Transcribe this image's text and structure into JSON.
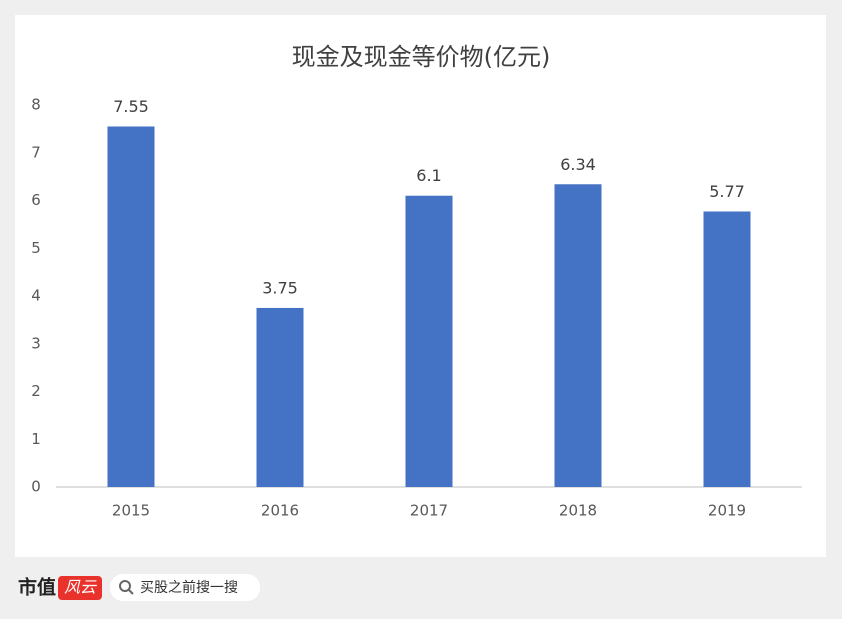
{
  "chart_data": {
    "type": "bar",
    "title": "现金及现金等价物(亿元)",
    "categories": [
      "2015",
      "2016",
      "2017",
      "2018",
      "2019"
    ],
    "values": [
      7.55,
      3.75,
      6.1,
      6.34,
      5.77
    ],
    "color": "#4472c4",
    "ylim": [
      0,
      8
    ],
    "yticks": [
      0,
      1,
      2,
      3,
      4,
      5,
      6,
      7,
      8
    ],
    "grid": false,
    "data_labels": true
  },
  "footer": {
    "logo": "市值",
    "badge": "风云",
    "search": "买股之前搜一搜"
  }
}
